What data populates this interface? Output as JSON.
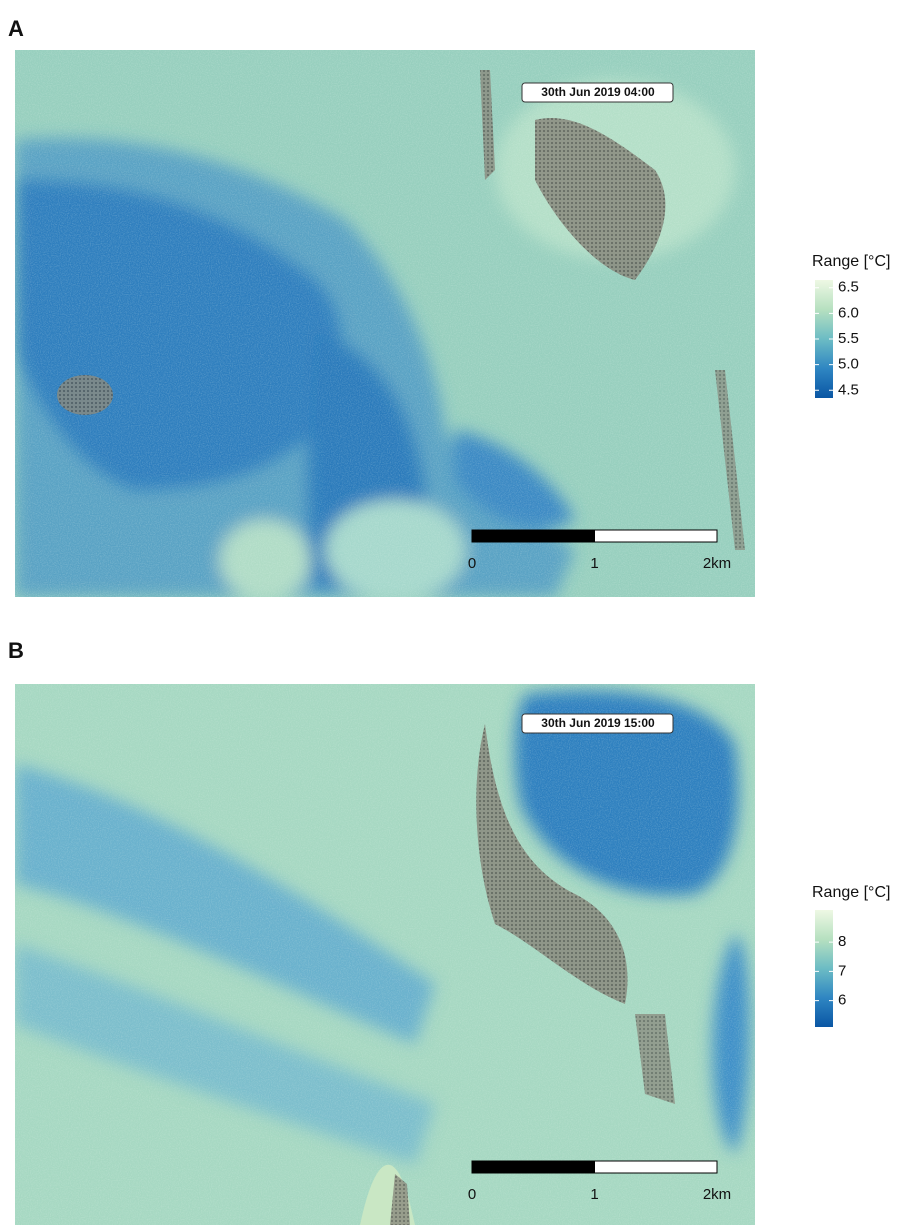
{
  "panels": [
    {
      "label": "A",
      "timestamp": "30th Jun 2019 04:00",
      "legend": {
        "title": "Range [°C]",
        "ylim": [
          4.35,
          6.65
        ],
        "yticks": [
          6.5,
          {
            "value": 6,
            "label": "6.0"
          },
          5.5,
          {
            "value": 5,
            "label": "5.0"
          },
          4.5
        ],
        "colors": [
          "#0a56a4",
          "#2f86c2",
          "#6cbcc4",
          "#b6e0c0",
          "#eef8e4"
        ]
      },
      "scale_bar": {
        "xlim": [
          0,
          2
        ],
        "xticks": [
          0,
          1,
          {
            "value": 2,
            "label": "2km"
          }
        ]
      }
    },
    {
      "label": "B",
      "timestamp": "30th Jun 2019 15:00",
      "legend": {
        "title": "Range [°C]",
        "ylim": [
          5.1,
          9.1
        ],
        "yticks": [
          8,
          7,
          6
        ],
        "colors": [
          "#0a56a4",
          "#2f86c2",
          "#6cbcc4",
          "#b6e0c0",
          "#eef8e4"
        ]
      },
      "scale_bar": {
        "xlim": [
          0,
          2
        ],
        "xticks": [
          0,
          1,
          {
            "value": 2,
            "label": "2km"
          }
        ]
      }
    }
  ]
}
